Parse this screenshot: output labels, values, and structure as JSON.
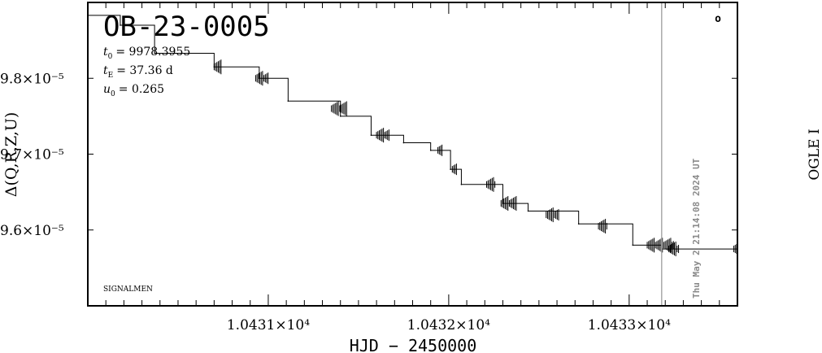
{
  "chart_data": {
    "type": "line",
    "title": "OB-23-0005",
    "params": {
      "t0_sym": "t",
      "t0_sub": "0",
      "t0_val": "= 9978.3955",
      "tE_sym": "t",
      "tE_sub": "E",
      "tE_val": "= 37.36  d",
      "u0_sym": "u",
      "u0_sub": "0",
      "u0_val": "= 0.265"
    },
    "corner_label": "SIGNALMEN",
    "timestamp": "Thu May  2 21:14:08 2024 UT",
    "side_label": "OGLE I",
    "marker": "o",
    "xlabel": "HJD − 2450000",
    "ylabel": "Δ(Q,R,Z,U)",
    "xlim": [
      10430.0,
      10433.6
    ],
    "ylim": [
      9.5e-05,
      9.9e-05
    ],
    "xticks": [
      {
        "value": 10431,
        "label": "1.0431×10⁴"
      },
      {
        "value": 10432,
        "label": "1.0432×10⁴"
      },
      {
        "value": 10433,
        "label": "1.0433×10⁴"
      }
    ],
    "yticks": [
      {
        "value": 9.8e-05,
        "label": "9.8×10⁻⁵"
      },
      {
        "value": 9.7e-05,
        "label": "9.7×10⁻⁵"
      },
      {
        "value": 9.6e-05,
        "label": "9.6×10⁻⁵"
      }
    ],
    "now_line_x": 10433.18,
    "steps": [
      [
        10430.0,
        9.883e-05
      ],
      [
        10430.18,
        9.87e-05
      ],
      [
        10430.37,
        9.833e-05
      ],
      [
        10430.7,
        9.815e-05
      ],
      [
        10430.95,
        9.8e-05
      ],
      [
        10431.11,
        9.77e-05
      ],
      [
        10431.4,
        9.75e-05
      ],
      [
        10431.57,
        9.725e-05
      ],
      [
        10431.75,
        9.715e-05
      ],
      [
        10431.9,
        9.705e-05
      ],
      [
        10432.01,
        9.68e-05
      ],
      [
        10432.07,
        9.66e-05
      ],
      [
        10432.3,
        9.635e-05
      ],
      [
        10432.44,
        9.625e-05
      ],
      [
        10432.72,
        9.608e-05
      ],
      [
        10433.02,
        9.58e-05
      ],
      [
        10433.18,
        9.575e-05
      ],
      [
        10433.6,
        9.575e-05
      ]
    ],
    "bursts": [
      {
        "x0": 10430.7,
        "x1": 10430.74,
        "y": 9.815e-05
      },
      {
        "x0": 10430.93,
        "x1": 10431.0,
        "y": 9.8e-05
      },
      {
        "x0": 10431.35,
        "x1": 10431.44,
        "y": 9.76e-05
      },
      {
        "x0": 10431.6,
        "x1": 10431.67,
        "y": 9.725e-05
      },
      {
        "x0": 10431.94,
        "x1": 10431.97,
        "y": 9.705e-05
      },
      {
        "x0": 10432.02,
        "x1": 10432.05,
        "y": 9.68e-05
      },
      {
        "x0": 10432.21,
        "x1": 10432.26,
        "y": 9.66e-05
      },
      {
        "x0": 10432.29,
        "x1": 10432.38,
        "y": 9.635e-05
      },
      {
        "x0": 10432.54,
        "x1": 10432.61,
        "y": 9.62e-05
      },
      {
        "x0": 10432.83,
        "x1": 10432.88,
        "y": 9.605e-05
      },
      {
        "x0": 10433.1,
        "x1": 10433.25,
        "y": 9.58e-05
      },
      {
        "x0": 10433.22,
        "x1": 10433.28,
        "y": 9.575e-05
      },
      {
        "x0": 10433.58,
        "x1": 10433.6,
        "y": 9.575e-05
      }
    ]
  }
}
